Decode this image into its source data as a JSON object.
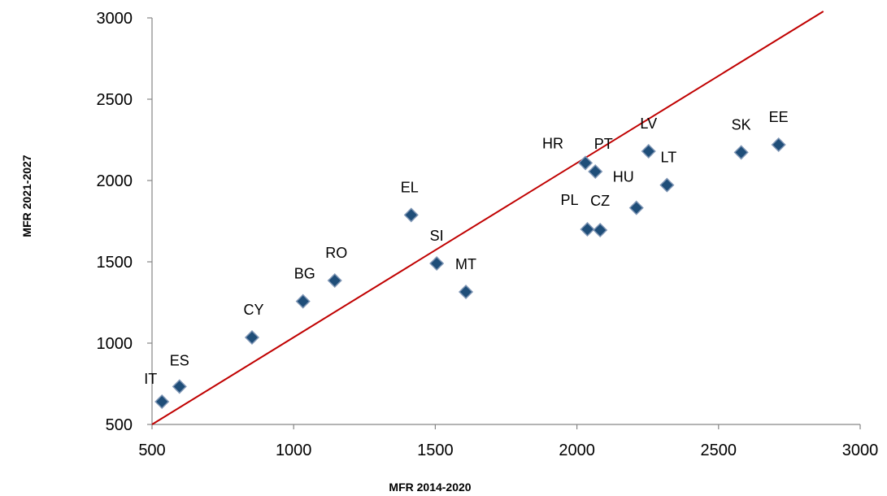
{
  "chart_data": {
    "type": "scatter",
    "title": "",
    "xlabel": "MFR 2014-2020",
    "ylabel": "MFR 2021-2027",
    "xlim": [
      500,
      3000
    ],
    "ylim": [
      500,
      3000
    ],
    "x_ticks": [
      "500",
      "1000",
      "1500",
      "2000",
      "2500",
      "3000"
    ],
    "y_ticks": [
      "500",
      "1000",
      "1500",
      "2000",
      "2500",
      "3000"
    ],
    "grid": false,
    "legend": "none",
    "marker_color": "#1f4e79",
    "marker_edge_color": "#7f96b5",
    "line_color": "#c00000",
    "reference_line": {
      "x": [
        500,
        2870
      ],
      "y": [
        500,
        3040
      ]
    },
    "points": [
      {
        "label": "IT",
        "x": 535,
        "y": 640
      },
      {
        "label": "ES",
        "x": 597,
        "y": 733
      },
      {
        "label": "CY",
        "x": 853,
        "y": 1035
      },
      {
        "label": "BG",
        "x": 1033,
        "y": 1257
      },
      {
        "label": "RO",
        "x": 1145,
        "y": 1385
      },
      {
        "label": "EL",
        "x": 1415,
        "y": 1788
      },
      {
        "label": "SI",
        "x": 1505,
        "y": 1490
      },
      {
        "label": "MT",
        "x": 1608,
        "y": 1315
      },
      {
        "label": "HR",
        "x": 2030,
        "y": 2108
      },
      {
        "label": "PT",
        "x": 2065,
        "y": 2055
      },
      {
        "label": "PL",
        "x": 2037,
        "y": 1700
      },
      {
        "label": "CZ",
        "x": 2082,
        "y": 1695
      },
      {
        "label": "HU",
        "x": 2210,
        "y": 1832
      },
      {
        "label": "LV",
        "x": 2253,
        "y": 2180
      },
      {
        "label": "LT",
        "x": 2318,
        "y": 1972
      },
      {
        "label": "SK",
        "x": 2580,
        "y": 2173
      },
      {
        "label": "EE",
        "x": 2712,
        "y": 2220
      }
    ]
  }
}
